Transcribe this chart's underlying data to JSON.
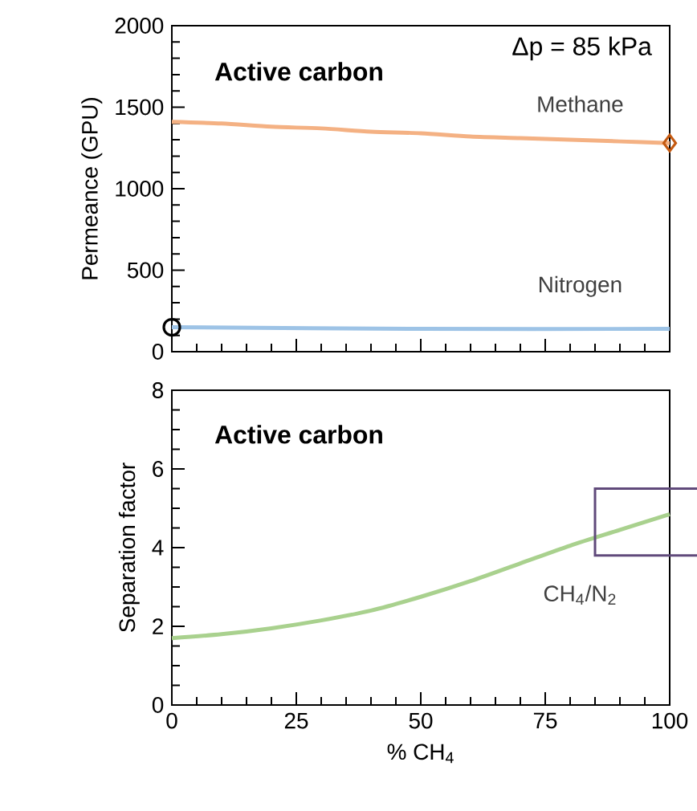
{
  "chart_data": [
    {
      "type": "line",
      "ylabel": "Permeance (GPU)",
      "annotations": [
        "**Active carbon**",
        "Δp = 85 kPa"
      ],
      "xlim": [
        0,
        100
      ],
      "xticks": [
        {
          "value": 0,
          "label": null
        },
        {
          "value": 25,
          "label": null
        },
        {
          "value": 50,
          "label": null
        },
        {
          "value": 75,
          "label": null
        },
        {
          "value": 100,
          "label": null
        }
      ],
      "ylim": [
        0,
        2000
      ],
      "yticks": [
        0,
        500,
        1000,
        1500,
        2000
      ],
      "tick_labels": "y",
      "grid": false,
      "legend": false,
      "series": [
        {
          "name": "Methane",
          "color": "#f4b183",
          "x": [
            0,
            10,
            20,
            30,
            40,
            50,
            60,
            70,
            80,
            90,
            100
          ],
          "values": [
            1410,
            1400,
            1380,
            1370,
            1350,
            1340,
            1320,
            1310,
            1300,
            1290,
            1280
          ]
        },
        {
          "name": "Nitrogen",
          "color": "#9dc3e6",
          "x": [
            0,
            50,
            100
          ],
          "values": [
            150,
            140,
            140
          ]
        },
        {
          "type": "scatter",
          "marker": "diamond",
          "color": "#c55a11",
          "x": [
            100
          ],
          "values": [
            1280
          ]
        },
        {
          "type": "scatter",
          "marker": "circle",
          "color": "#000000",
          "x": [
            0
          ],
          "values": [
            150
          ]
        }
      ]
    },
    {
      "type": "line",
      "ylabel": "Separation factor",
      "xlabel": "% CH$_{4}$",
      "annotations": [
        "**Active carbon**"
      ],
      "xlim": [
        0,
        100
      ],
      "xticks": [
        0,
        25,
        50,
        75,
        100
      ],
      "ylim": [
        0,
        8
      ],
      "yticks": [
        0,
        2,
        4,
        6,
        8
      ],
      "grid": false,
      "legend": false,
      "series": [
        {
          "name": "CH$_{4}$/N$_{2}$",
          "color": "#a9d18e",
          "x": [
            0,
            10,
            20,
            30,
            40,
            50,
            60,
            70,
            80,
            90,
            100
          ],
          "values": [
            1.7,
            1.8,
            1.95,
            2.15,
            2.4,
            2.75,
            3.15,
            3.6,
            4.05,
            4.45,
            4.85
          ]
        }
      ]
    }
  ]
}
